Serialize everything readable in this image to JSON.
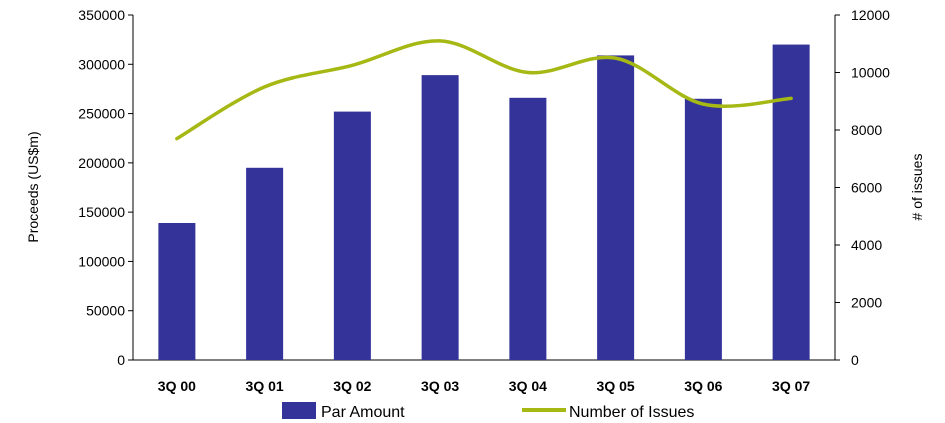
{
  "chart_data": {
    "type": "bar",
    "categories": [
      "3Q 00",
      "3Q 01",
      "3Q 02",
      "3Q 03",
      "3Q 04",
      "3Q 05",
      "3Q 06",
      "3Q 07"
    ],
    "series": [
      {
        "name": "Par Amount",
        "type": "bar",
        "axis": "left",
        "color": "#333399",
        "values": [
          139000,
          195000,
          252000,
          289000,
          266000,
          309000,
          265000,
          320000
        ]
      },
      {
        "name": "Number of Issues",
        "type": "line",
        "axis": "right",
        "color": "#a6b814",
        "smooth": true,
        "values": [
          7700,
          9500,
          10250,
          11100,
          10000,
          10500,
          8900,
          9100
        ]
      }
    ],
    "ylabel": "Proceeds (US$m)",
    "ylabel_right": "# of issues",
    "ylim": [
      0,
      350000
    ],
    "ylim_right": [
      0,
      12000
    ],
    "yticks": [
      "0",
      "50000",
      "100000",
      "150000",
      "200000",
      "250000",
      "300000",
      "350000"
    ],
    "yticks_right": [
      "0",
      "2000",
      "4000",
      "6000",
      "8000",
      "10000",
      "12000"
    ],
    "grid": false,
    "legend_position": "bottom"
  }
}
